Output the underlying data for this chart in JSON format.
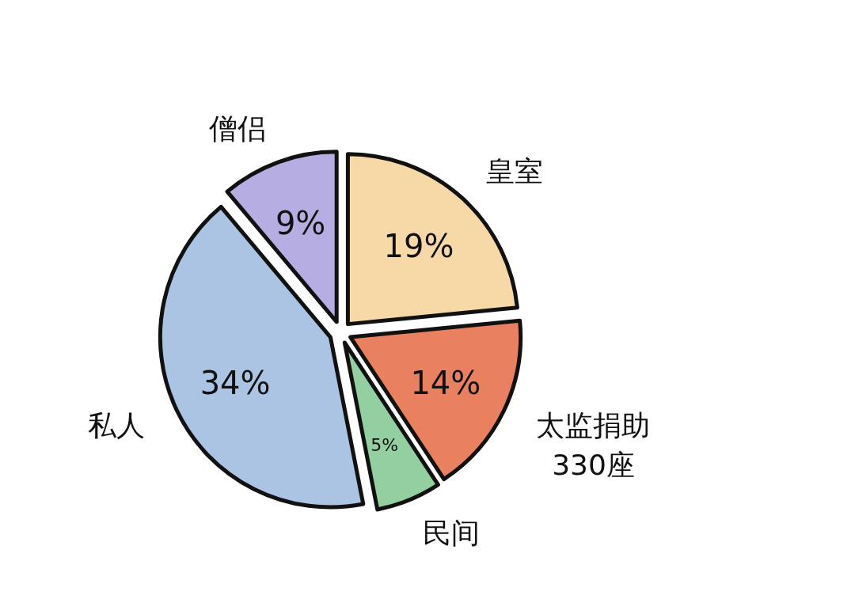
{
  "chart_data": {
    "type": "pie",
    "categories": [
      "皇室",
      "太监捐助",
      "民间",
      "私人",
      "僧侣"
    ],
    "values": [
      19,
      14,
      5,
      34,
      9
    ],
    "colors": [
      "#f7d9a8",
      "#e9805f",
      "#93cfa0",
      "#abc4e4",
      "#b6aee2"
    ],
    "value_labels": [
      "19%",
      "14%",
      "5%",
      "34%",
      "9%"
    ],
    "annotations": [
      "330座"
    ]
  }
}
